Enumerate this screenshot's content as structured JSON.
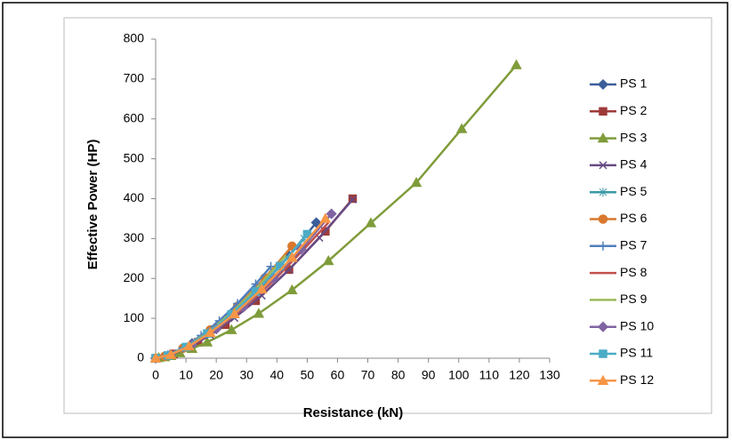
{
  "chart_data": {
    "type": "line",
    "x_label": "Resistance (kN)",
    "y_label": "Effective Power  (HP)",
    "xlim": [
      0,
      130
    ],
    "xticks": [
      0,
      10,
      20,
      30,
      40,
      50,
      60,
      70,
      80,
      90,
      100,
      110,
      120,
      130
    ],
    "ylim": [
      0,
      800
    ],
    "yticks": [
      0,
      100,
      200,
      300,
      400,
      500,
      600,
      700,
      800
    ],
    "grid": false,
    "legend": "right",
    "series": [
      {
        "name": "PS 1",
        "color": "#3b5f9a",
        "marker": "diamond",
        "x": [
          0,
          5,
          12,
          20,
          28,
          36,
          44,
          53
        ],
        "values": [
          0,
          10,
          37,
          79,
          130,
          190,
          257,
          340
        ]
      },
      {
        "name": "PS 2",
        "color": "#9e3b38",
        "marker": "square",
        "x": [
          0,
          6,
          14,
          23,
          33,
          44,
          56,
          65
        ],
        "values": [
          0,
          11,
          40,
          84,
          144,
          222,
          318,
          400
        ]
      },
      {
        "name": "PS 3",
        "color": "#7f9c3a",
        "marker": "triangle",
        "x": [
          0,
          1,
          3,
          5,
          8,
          12,
          17,
          25,
          34,
          45,
          57,
          71,
          86,
          101,
          119
        ],
        "values": [
          0,
          1,
          3,
          6,
          13,
          24,
          40,
          71,
          112,
          171,
          244,
          339,
          440,
          575,
          735
        ]
      },
      {
        "name": "PS 4",
        "color": "#674a84",
        "marker": "x",
        "x": [
          0,
          5,
          11,
          18,
          26,
          35,
          44,
          54,
          65
        ],
        "values": [
          0,
          8,
          28,
          58,
          101,
          157,
          222,
          302,
          398
        ]
      },
      {
        "name": "PS 5",
        "color": "#3a9aa8",
        "marker": "star",
        "x": [
          0,
          4,
          10,
          17,
          25,
          33,
          41,
          49
        ],
        "values": [
          0,
          7,
          28,
          61,
          109,
          166,
          230,
          300
        ]
      },
      {
        "name": "PS 6",
        "color": "#d9782d",
        "marker": "circle",
        "x": [
          0,
          3,
          9,
          18,
          27,
          36,
          45
        ],
        "values": [
          0,
          5,
          25,
          71,
          130,
          201,
          281
        ]
      },
      {
        "name": "PS 7",
        "color": "#4f7fbd",
        "marker": "plus",
        "x": [
          0,
          4,
          9,
          15,
          21,
          27,
          33,
          38
        ],
        "values": [
          0,
          8,
          26,
          57,
          94,
          137,
          186,
          230
        ]
      },
      {
        "name": "PS 8",
        "color": "#c0504d",
        "marker": "none",
        "x": [
          0,
          5,
          12,
          20,
          29,
          39,
          49,
          57
        ],
        "values": [
          0,
          9,
          33,
          72,
          125,
          195,
          274,
          340
        ]
      },
      {
        "name": "PS 9",
        "color": "#9bbb59",
        "marker": "none",
        "x": [
          0,
          4,
          10,
          17,
          25,
          34,
          43
        ],
        "values": [
          0,
          7,
          29,
          64,
          114,
          181,
          258
        ]
      },
      {
        "name": "PS 10",
        "color": "#8064a2",
        "marker": "diamond",
        "x": [
          0,
          5,
          12,
          20,
          29,
          39,
          48,
          58
        ],
        "values": [
          0,
          9,
          34,
          73,
          128,
          200,
          273,
          362
        ]
      },
      {
        "name": "PS 11",
        "color": "#4bacc6",
        "marker": "square",
        "x": [
          0,
          4,
          10,
          17,
          25,
          33,
          41,
          50
        ],
        "values": [
          0,
          7,
          28,
          62,
          110,
          167,
          231,
          311
        ]
      },
      {
        "name": "PS 12",
        "color": "#f79646",
        "marker": "triangle",
        "x": [
          0,
          5,
          11,
          18,
          26,
          35,
          45,
          56
        ],
        "values": [
          0,
          9,
          30,
          64,
          111,
          173,
          252,
          350
        ]
      }
    ]
  }
}
